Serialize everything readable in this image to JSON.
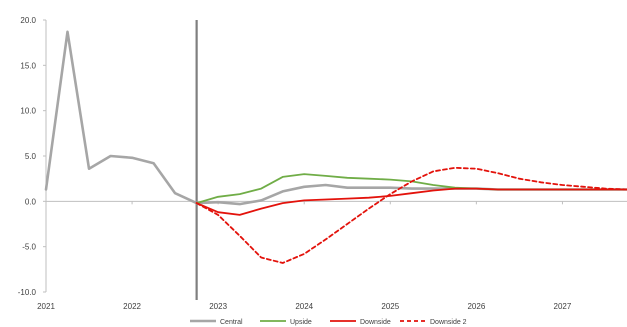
{
  "chart_data": {
    "type": "line",
    "title": "",
    "xlabel": "",
    "ylabel": "",
    "ylim": [
      -10,
      20
    ],
    "yticks": [
      -10,
      -5,
      0,
      5,
      10,
      15,
      20
    ],
    "ytick_labels": [
      "-10.0",
      "-5.0",
      "0.0",
      "5.0",
      "10.0",
      "15.0",
      "20.0"
    ],
    "xlim": [
      2021.0,
      2027.75
    ],
    "xticks": [
      2021,
      2022,
      2023,
      2024,
      2025,
      2026,
      2027
    ],
    "xtick_labels": [
      "2021",
      "2022",
      "2023",
      "2024",
      "2025",
      "2026",
      "2027"
    ],
    "vertical_marker_x": 2022.75,
    "grid": false,
    "legend_position": "bottom",
    "series": [
      {
        "name": "Central",
        "color": "#a6a6a6",
        "dash": "solid",
        "x": [
          2021.0,
          2021.25,
          2021.5,
          2021.75,
          2022.0,
          2022.25,
          2022.5,
          2022.75,
          2023.0,
          2023.25,
          2023.5,
          2023.75,
          2024.0,
          2024.25,
          2024.5,
          2024.75,
          2025.0,
          2025.25,
          2025.5,
          2025.75,
          2026.0,
          2026.25,
          2026.5,
          2026.75,
          2027.0,
          2027.25,
          2027.5,
          2027.75
        ],
        "y": [
          1.3,
          18.7,
          3.6,
          5.0,
          4.8,
          4.2,
          0.9,
          -0.2,
          -0.1,
          -0.3,
          0.1,
          1.1,
          1.6,
          1.8,
          1.5,
          1.5,
          1.5,
          1.4,
          1.4,
          1.4,
          1.4,
          1.3,
          1.3,
          1.3,
          1.3,
          1.3,
          1.3,
          1.3
        ]
      },
      {
        "name": "Upside",
        "color": "#70ad47",
        "dash": "solid",
        "x": [
          2022.75,
          2023.0,
          2023.25,
          2023.5,
          2023.75,
          2024.0,
          2024.25,
          2024.5,
          2024.75,
          2025.0,
          2025.25,
          2025.5,
          2025.75,
          2026.0,
          2026.25,
          2026.5,
          2026.75,
          2027.0,
          2027.25,
          2027.5,
          2027.75
        ],
        "y": [
          -0.2,
          0.5,
          0.8,
          1.4,
          2.7,
          3.0,
          2.8,
          2.6,
          2.5,
          2.4,
          2.2,
          1.8,
          1.5,
          1.4,
          1.3,
          1.3,
          1.3,
          1.3,
          1.3,
          1.3,
          1.3
        ]
      },
      {
        "name": "Downside",
        "color": "#e3120b",
        "dash": "solid",
        "x": [
          2022.75,
          2023.0,
          2023.25,
          2023.5,
          2023.75,
          2024.0,
          2024.25,
          2024.5,
          2024.75,
          2025.0,
          2025.25,
          2025.5,
          2025.75,
          2026.0,
          2026.25,
          2026.5,
          2026.75,
          2027.0,
          2027.25,
          2027.5,
          2027.75
        ],
        "y": [
          -0.2,
          -1.2,
          -1.5,
          -0.8,
          -0.2,
          0.1,
          0.2,
          0.3,
          0.4,
          0.6,
          0.9,
          1.2,
          1.4,
          1.4,
          1.3,
          1.3,
          1.3,
          1.3,
          1.3,
          1.3,
          1.3
        ]
      },
      {
        "name": "Downside 2",
        "color": "#e3120b",
        "dash": "dashed",
        "x": [
          2022.75,
          2023.0,
          2023.25,
          2023.5,
          2023.75,
          2024.0,
          2024.25,
          2024.5,
          2024.75,
          2025.0,
          2025.25,
          2025.5,
          2025.75,
          2026.0,
          2026.25,
          2026.5,
          2026.75,
          2027.0,
          2027.25,
          2027.5,
          2027.75
        ],
        "y": [
          -0.2,
          -1.5,
          -3.8,
          -6.2,
          -6.8,
          -5.8,
          -4.2,
          -2.5,
          -0.8,
          0.8,
          2.2,
          3.3,
          3.7,
          3.6,
          3.1,
          2.5,
          2.1,
          1.8,
          1.6,
          1.4,
          1.3
        ]
      }
    ]
  }
}
